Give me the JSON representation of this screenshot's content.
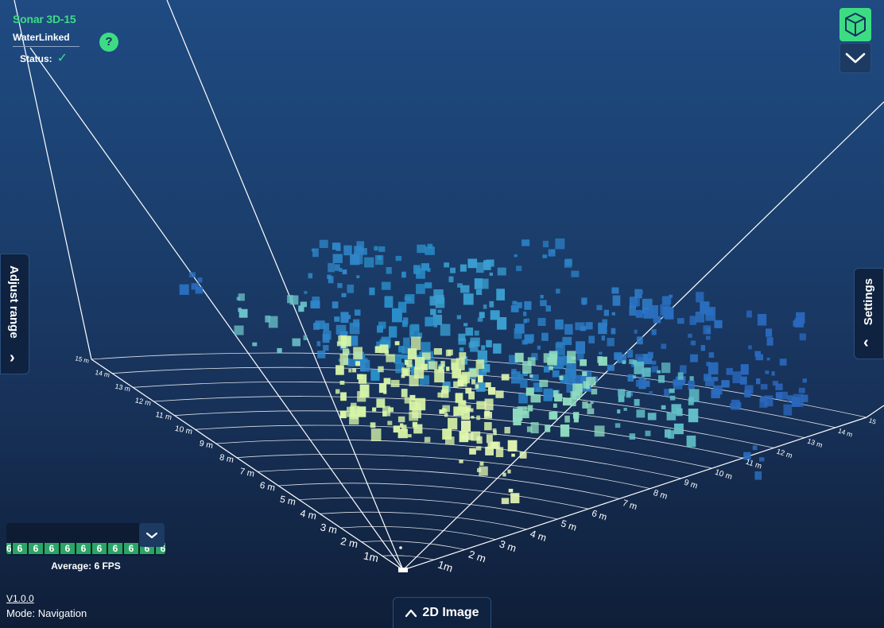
{
  "header": {
    "product_name": "Sonar 3D-15",
    "logo_text": "WaterLinked",
    "status_label": "Status:"
  },
  "icons": {
    "status_ok": "check-icon",
    "help": "question-icon",
    "view_3d": "cube-icon",
    "collapse": "chevron-down-icon",
    "adjust_range": "chevron-right-icon",
    "settings": "chevron-left-icon",
    "fps_dropdown": "chevron-down-icon",
    "image_2d": "chevron-up-icon"
  },
  "colors": {
    "accent": "#3ddc84",
    "fps_cell": "#2aa566",
    "panel": "#0f2240"
  },
  "side_tabs": {
    "adjust_range_label": "Adjust range",
    "settings_label": "Settings"
  },
  "fps": {
    "cells": [
      "6",
      "6",
      "6",
      "6",
      "6",
      "6",
      "6",
      "6",
      "6",
      "6",
      "6"
    ],
    "average_label": "Average: 6 FPS"
  },
  "footer": {
    "version": "V1.0.0",
    "mode": "Mode: Navigation",
    "image_2d_button": "2D Image"
  },
  "range_axis": {
    "left_labels": [
      "1m",
      "2 m",
      "3 m",
      "4 m",
      "5 m",
      "6 m",
      "7 m",
      "8 m",
      "9 m",
      "10 m",
      "11 m",
      "12 m",
      "13 m",
      "14 m",
      "15 m"
    ],
    "right_labels": [
      "1m",
      "2 m",
      "3 m",
      "4 m",
      "5 m",
      "6 m",
      "7 m",
      "8 m",
      "9 m",
      "10 m",
      "11 m",
      "12 m",
      "13 m",
      "14 m",
      "15"
    ]
  }
}
